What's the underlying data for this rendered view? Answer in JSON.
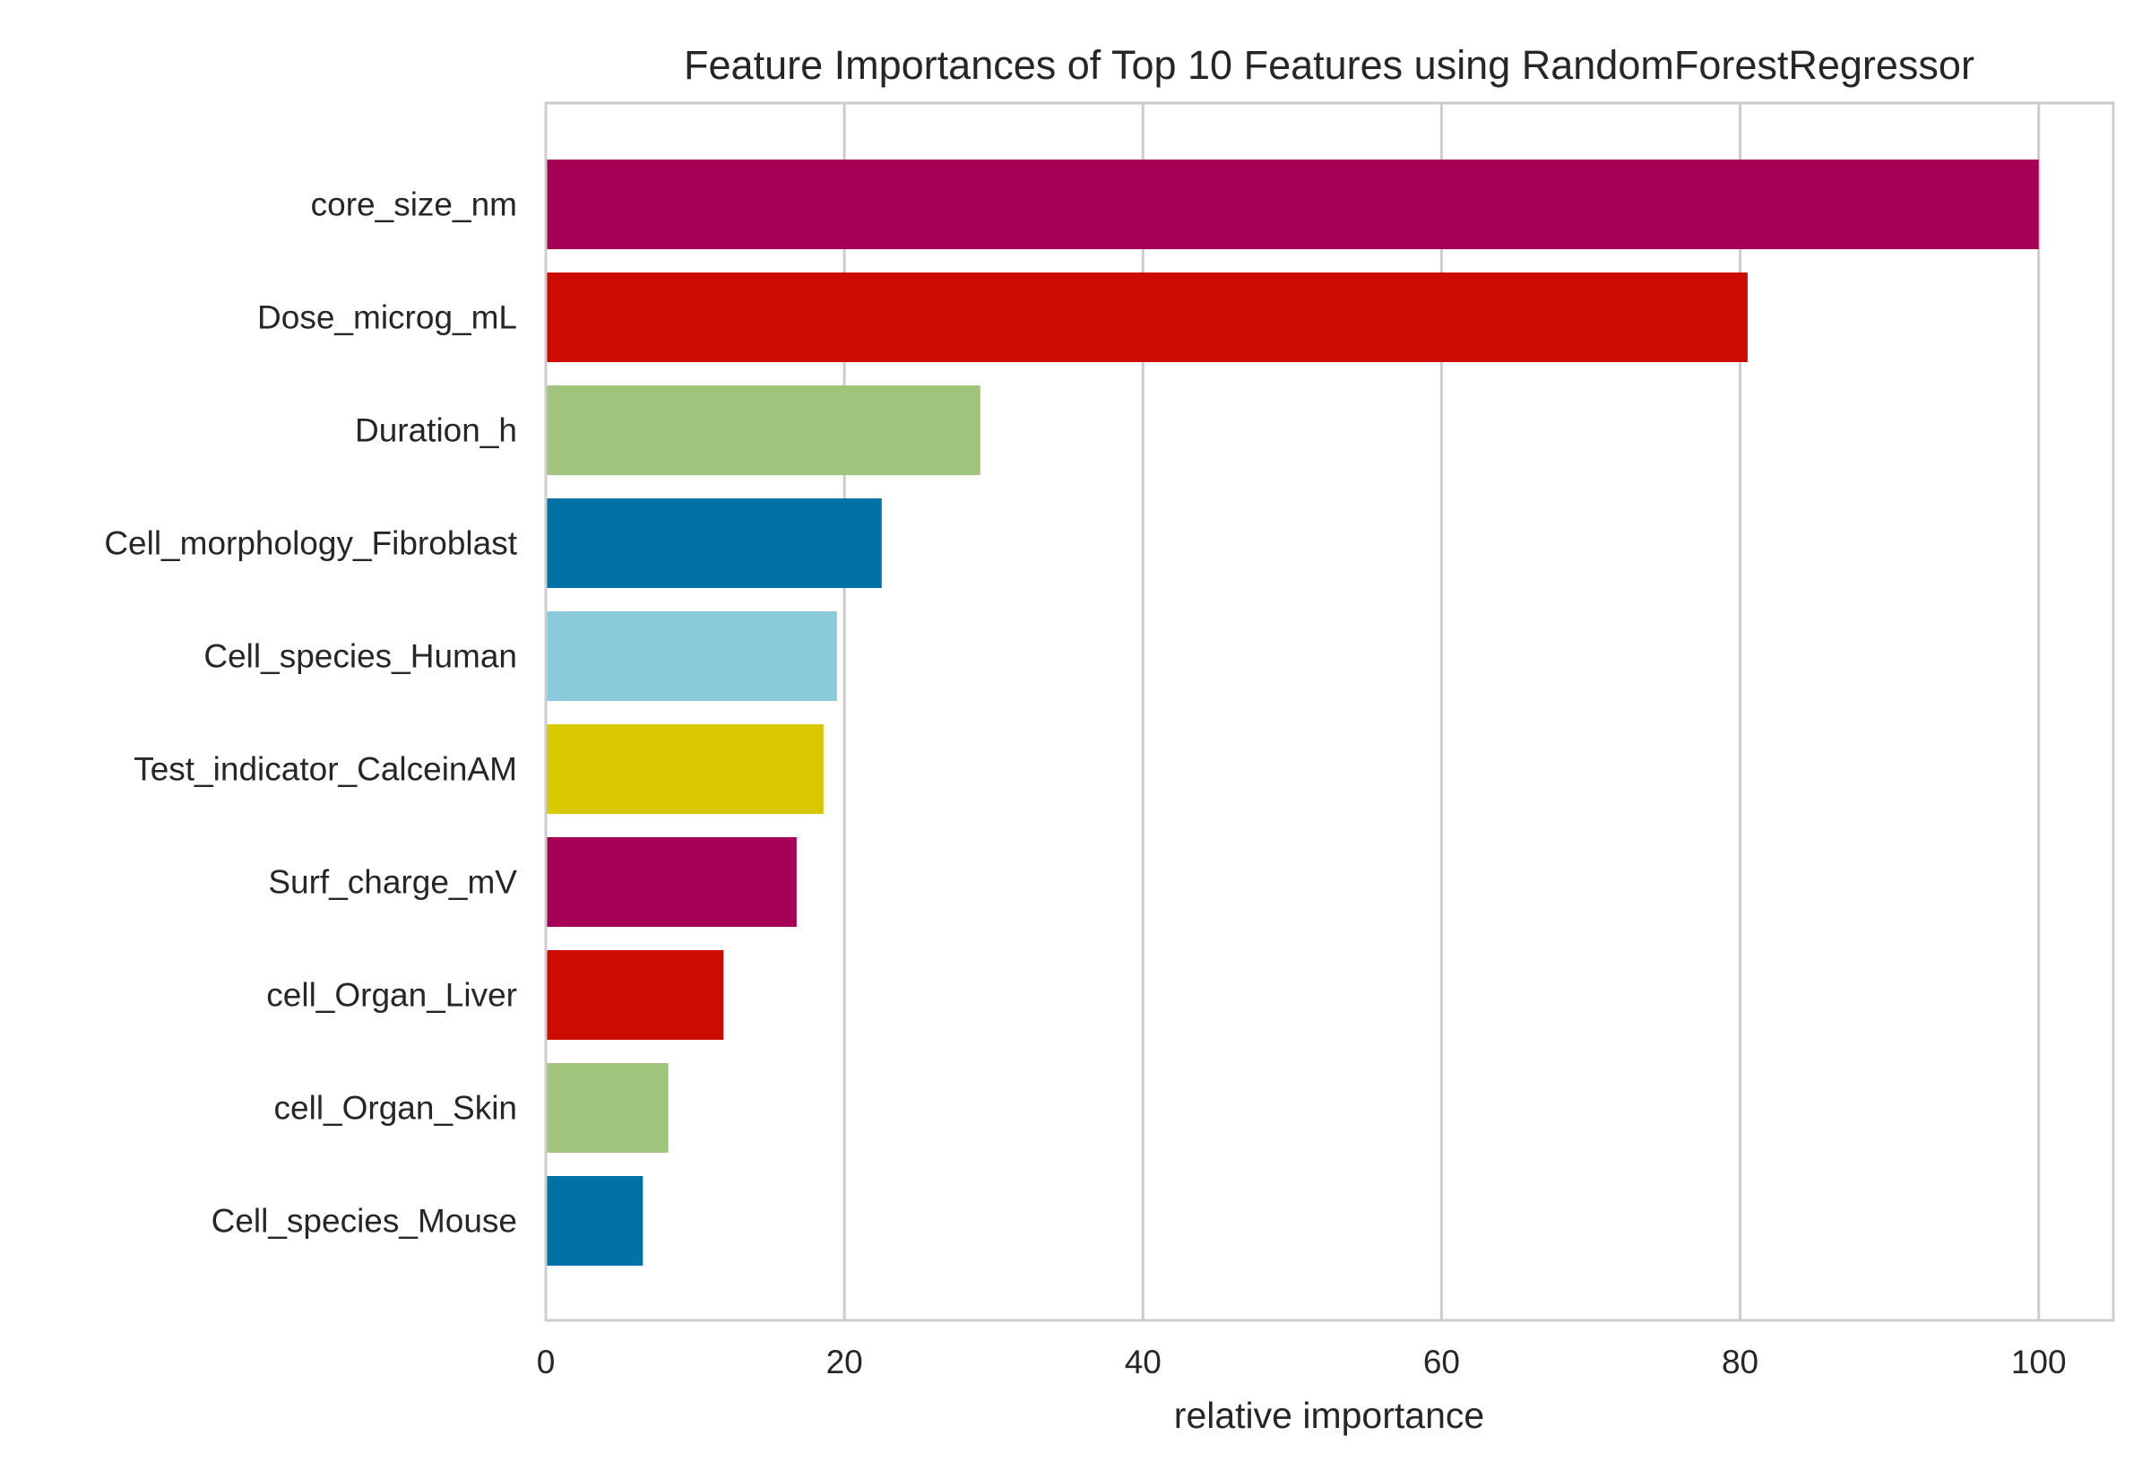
{
  "chart_data": {
    "type": "bar",
    "orientation": "horizontal",
    "title": "Feature Importances of Top 10 Features using RandomForestRegressor",
    "xlabel": "relative importance",
    "ylabel": "",
    "xlim": [
      0,
      105
    ],
    "xticks": [
      0,
      20,
      40,
      60,
      80,
      100
    ],
    "grid": true,
    "legend": "none",
    "categories": [
      "core_size_nm",
      "Dose_microg_mL",
      "Duration_h",
      "Cell_morphology_Fibroblast",
      "Cell_species_Human",
      "Test_indicator_CalceinAM",
      "Surf_charge_mV",
      "cell_Organ_Liver",
      "cell_Organ_Skin",
      "Cell_species_Mouse"
    ],
    "values": [
      100,
      80.5,
      29.1,
      22.5,
      19.5,
      18.6,
      16.8,
      11.9,
      8.2,
      6.5
    ],
    "colors": [
      "#a50055",
      "#cc0c00",
      "#a0c47b",
      "#0072a5",
      "#8bcadb",
      "#d9c800",
      "#a50055",
      "#cc0c00",
      "#a0c47b",
      "#0072a5"
    ],
    "grid_color": "#cccccc",
    "spine_color": "#cccccc"
  }
}
